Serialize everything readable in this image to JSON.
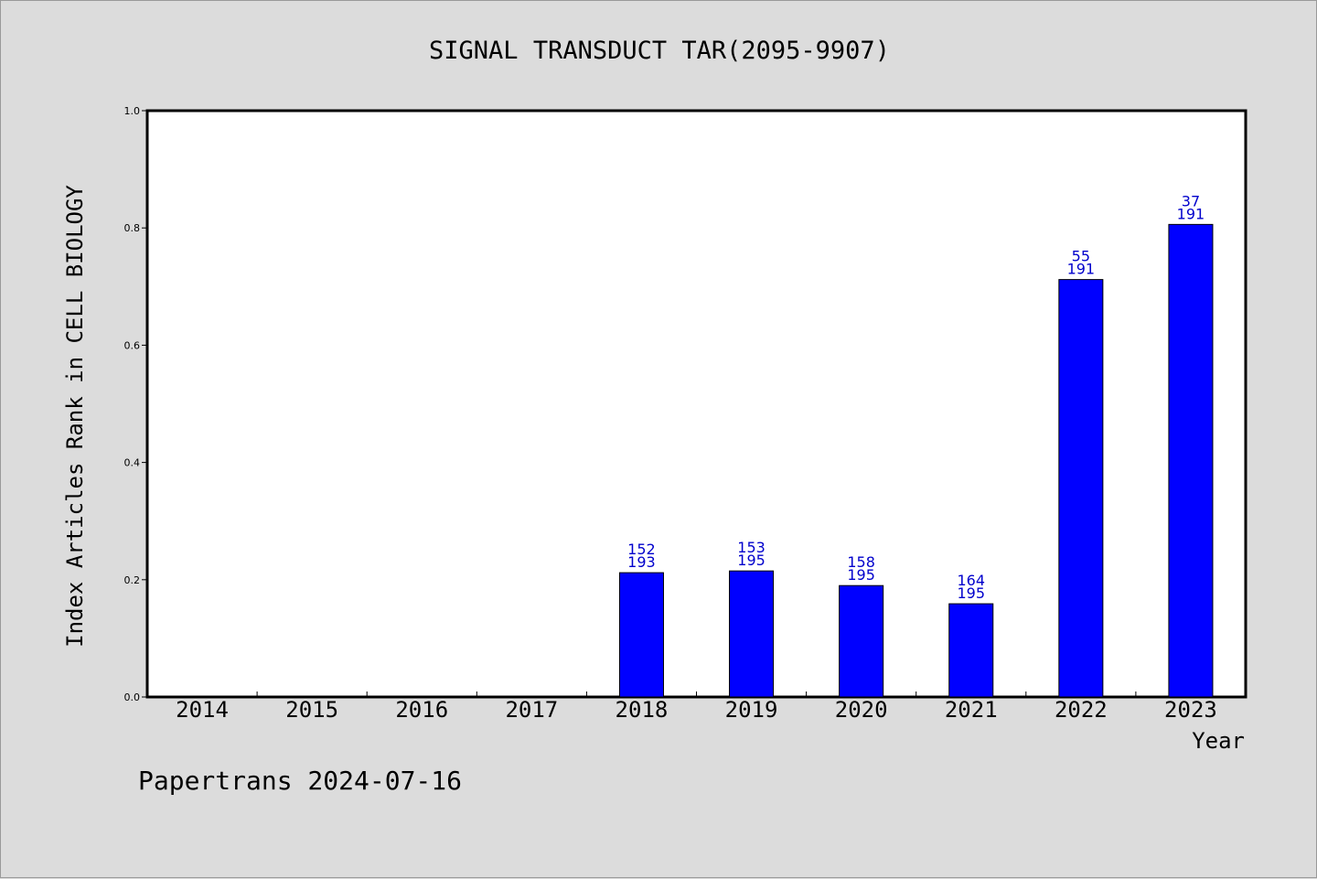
{
  "chart_data": {
    "type": "bar",
    "title": "SIGNAL TRANSDUCT TAR(2095-9907)",
    "xlabel": "Year",
    "ylabel": "Index Articles Rank in CELL BIOLOGY",
    "ylim": [
      0,
      1.0
    ],
    "yticks": [
      "0.0",
      "0.2",
      "0.4",
      "0.6",
      "0.8",
      "1.0"
    ],
    "categories": [
      "2014",
      "2015",
      "2016",
      "2017",
      "2018",
      "2019",
      "2020",
      "2021",
      "2022",
      "2023"
    ],
    "values": [
      null,
      null,
      null,
      null,
      0.212,
      0.215,
      0.19,
      0.159,
      0.712,
      0.806
    ],
    "bar_labels": [
      null,
      null,
      null,
      null,
      [
        "152",
        "193"
      ],
      [
        "153",
        "195"
      ],
      [
        "158",
        "195"
      ],
      [
        "164",
        "195"
      ],
      [
        "55",
        "191"
      ],
      [
        "37",
        "191"
      ]
    ],
    "bar_color": "#0000ff",
    "label_color": "#0000cc",
    "grid": false,
    "legend": "none"
  },
  "footer": {
    "text": "Papertrans 2024-07-16"
  }
}
